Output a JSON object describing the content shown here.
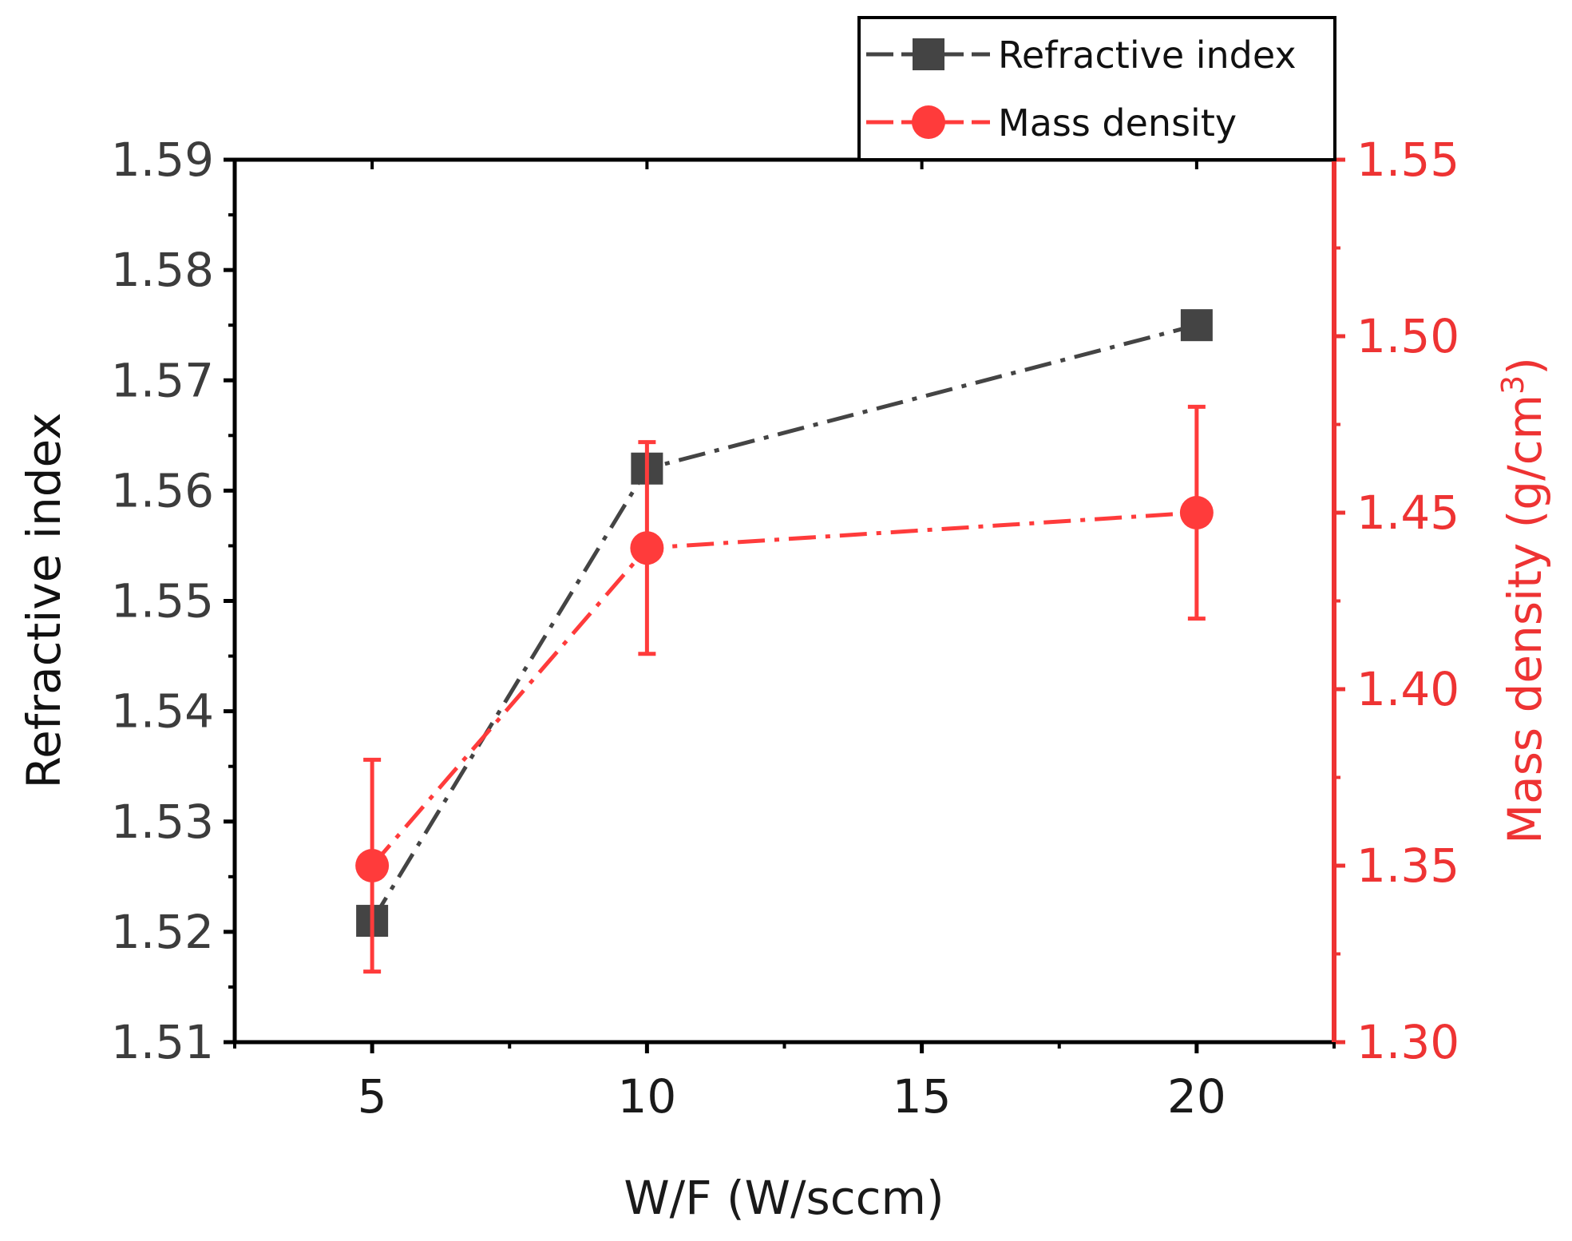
{
  "chart_data": {
    "type": "line",
    "title": "",
    "xlabel": "W/F (W/sccm)",
    "ylabel": "Refractive index",
    "ylabel_right_main": "Mass density (g/cm",
    "ylabel_right_sup": "3",
    "ylabel_right_close": ")",
    "xlim": [
      2.5,
      22.5
    ],
    "ylim": [
      1.51,
      1.59
    ],
    "ylim_right": [
      1.3,
      1.55
    ],
    "x_ticks": [
      "5",
      "10",
      "15",
      "20"
    ],
    "x_tick_values": [
      5,
      10,
      15,
      20
    ],
    "y_ticks": [
      "1.51",
      "1.52",
      "1.53",
      "1.54",
      "1.55",
      "1.56",
      "1.57",
      "1.58",
      "1.59"
    ],
    "y_tick_values": [
      1.51,
      1.52,
      1.53,
      1.54,
      1.55,
      1.56,
      1.57,
      1.58,
      1.59
    ],
    "y_right_ticks": [
      "1.30",
      "1.35",
      "1.40",
      "1.45",
      "1.50",
      "1.55"
    ],
    "y_right_tick_values": [
      1.3,
      1.35,
      1.4,
      1.45,
      1.5,
      1.55
    ],
    "legend_position": "top-right",
    "series": [
      {
        "name": "Refractive index",
        "axis": "left",
        "marker": "square",
        "color": "#444444",
        "x": [
          5,
          10,
          20
        ],
        "values": [
          1.521,
          1.562,
          1.575
        ]
      },
      {
        "name": "Mass density",
        "axis": "right",
        "marker": "circle",
        "color": "#ff3b3b",
        "x": [
          5,
          10,
          20
        ],
        "values": [
          1.35,
          1.44,
          1.45
        ],
        "error": [
          0.03,
          0.03,
          0.03
        ]
      }
    ]
  }
}
